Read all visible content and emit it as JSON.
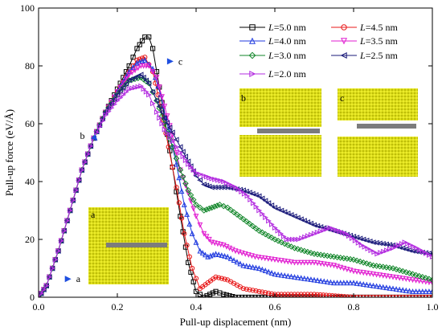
{
  "chart_data": {
    "type": "scatter",
    "xlabel": "Pull-up displacement (nm)",
    "ylabel": "Pull-up force (eV/Å)",
    "xlim": [
      0.0,
      1.0
    ],
    "ylim": [
      0,
      100
    ],
    "xticks": [
      "0.0",
      "0.2",
      "0.4",
      "0.6",
      "0.8",
      "1.0"
    ],
    "yticks": [
      "0",
      "20",
      "40",
      "60",
      "80",
      "100"
    ],
    "grid": false,
    "legend_position": "top-right",
    "series": [
      {
        "name": "=5.0 nm",
        "color": "#000000",
        "marker": "square",
        "points": [
          [
            0.0,
            0
          ],
          [
            0.02,
            4
          ],
          [
            0.05,
            16
          ],
          [
            0.08,
            30
          ],
          [
            0.11,
            44
          ],
          [
            0.14,
            55
          ],
          [
            0.17,
            64
          ],
          [
            0.2,
            72
          ],
          [
            0.23,
            80
          ],
          [
            0.25,
            86
          ],
          [
            0.27,
            90
          ],
          [
            0.28,
            90
          ],
          [
            0.29,
            86
          ],
          [
            0.3,
            78
          ],
          [
            0.32,
            62
          ],
          [
            0.34,
            45
          ],
          [
            0.36,
            28
          ],
          [
            0.38,
            12
          ],
          [
            0.4,
            2
          ],
          [
            0.42,
            0
          ],
          [
            0.45,
            2
          ],
          [
            0.47,
            1
          ],
          [
            0.5,
            0
          ],
          [
            0.6,
            0
          ],
          [
            0.7,
            0
          ],
          [
            0.8,
            0
          ],
          [
            0.9,
            0
          ],
          [
            1.0,
            0
          ]
        ]
      },
      {
        "name": "=4.5 nm",
        "color": "#e8191a",
        "marker": "circle",
        "points": [
          [
            0.0,
            0
          ],
          [
            0.02,
            4
          ],
          [
            0.05,
            16
          ],
          [
            0.08,
            30
          ],
          [
            0.11,
            44
          ],
          [
            0.14,
            55
          ],
          [
            0.17,
            64
          ],
          [
            0.2,
            71
          ],
          [
            0.23,
            78
          ],
          [
            0.25,
            82
          ],
          [
            0.27,
            83
          ],
          [
            0.29,
            78
          ],
          [
            0.31,
            66
          ],
          [
            0.33,
            52
          ],
          [
            0.35,
            38
          ],
          [
            0.37,
            22
          ],
          [
            0.39,
            10
          ],
          [
            0.41,
            3
          ],
          [
            0.43,
            5
          ],
          [
            0.45,
            7
          ],
          [
            0.48,
            6
          ],
          [
            0.52,
            3
          ],
          [
            0.56,
            2
          ],
          [
            0.6,
            1
          ],
          [
            0.7,
            1
          ],
          [
            0.8,
            0
          ],
          [
            0.9,
            0
          ],
          [
            1.0,
            0
          ]
        ]
      },
      {
        "name": "=4.0 nm",
        "color": "#1f3adf",
        "marker": "triangle-up",
        "points": [
          [
            0.0,
            0
          ],
          [
            0.02,
            4
          ],
          [
            0.05,
            16
          ],
          [
            0.08,
            30
          ],
          [
            0.11,
            44
          ],
          [
            0.14,
            55
          ],
          [
            0.17,
            64
          ],
          [
            0.2,
            71
          ],
          [
            0.23,
            78
          ],
          [
            0.25,
            81
          ],
          [
            0.27,
            82
          ],
          [
            0.29,
            79
          ],
          [
            0.31,
            70
          ],
          [
            0.33,
            58
          ],
          [
            0.35,
            46
          ],
          [
            0.37,
            32
          ],
          [
            0.39,
            22
          ],
          [
            0.41,
            16
          ],
          [
            0.43,
            14
          ],
          [
            0.45,
            15
          ],
          [
            0.48,
            14
          ],
          [
            0.52,
            11
          ],
          [
            0.56,
            10
          ],
          [
            0.6,
            8
          ],
          [
            0.65,
            7
          ],
          [
            0.7,
            6
          ],
          [
            0.75,
            5
          ],
          [
            0.8,
            5
          ],
          [
            0.85,
            4
          ],
          [
            0.9,
            3
          ],
          [
            0.95,
            2
          ],
          [
            1.0,
            2
          ]
        ]
      },
      {
        "name": "=3.5 nm",
        "color": "#e01bd0",
        "marker": "triangle-down",
        "points": [
          [
            0.0,
            0
          ],
          [
            0.02,
            4
          ],
          [
            0.05,
            16
          ],
          [
            0.08,
            30
          ],
          [
            0.11,
            44
          ],
          [
            0.14,
            55
          ],
          [
            0.17,
            64
          ],
          [
            0.2,
            71
          ],
          [
            0.23,
            77
          ],
          [
            0.26,
            80
          ],
          [
            0.28,
            80
          ],
          [
            0.3,
            76
          ],
          [
            0.32,
            66
          ],
          [
            0.34,
            56
          ],
          [
            0.36,
            44
          ],
          [
            0.38,
            36
          ],
          [
            0.4,
            28
          ],
          [
            0.42,
            22
          ],
          [
            0.44,
            19
          ],
          [
            0.47,
            18
          ],
          [
            0.5,
            16
          ],
          [
            0.55,
            14
          ],
          [
            0.6,
            13
          ],
          [
            0.65,
            12
          ],
          [
            0.7,
            12
          ],
          [
            0.75,
            11
          ],
          [
            0.8,
            9
          ],
          [
            0.85,
            8
          ],
          [
            0.9,
            7
          ],
          [
            0.95,
            6
          ],
          [
            1.0,
            5
          ]
        ]
      },
      {
        "name": "=3.0 nm",
        "color": "#12862a",
        "marker": "diamond",
        "points": [
          [
            0.0,
            0
          ],
          [
            0.02,
            4
          ],
          [
            0.05,
            16
          ],
          [
            0.08,
            30
          ],
          [
            0.11,
            44
          ],
          [
            0.14,
            55
          ],
          [
            0.17,
            64
          ],
          [
            0.2,
            70
          ],
          [
            0.23,
            75
          ],
          [
            0.26,
            76
          ],
          [
            0.28,
            74
          ],
          [
            0.3,
            68
          ],
          [
            0.32,
            60
          ],
          [
            0.34,
            52
          ],
          [
            0.36,
            44
          ],
          [
            0.38,
            37
          ],
          [
            0.4,
            32
          ],
          [
            0.42,
            30
          ],
          [
            0.44,
            31
          ],
          [
            0.46,
            32
          ],
          [
            0.48,
            31
          ],
          [
            0.52,
            27
          ],
          [
            0.56,
            23
          ],
          [
            0.6,
            20
          ],
          [
            0.65,
            17
          ],
          [
            0.7,
            15
          ],
          [
            0.75,
            14
          ],
          [
            0.8,
            13
          ],
          [
            0.85,
            11
          ],
          [
            0.9,
            10
          ],
          [
            0.95,
            8
          ],
          [
            1.0,
            6
          ]
        ]
      },
      {
        "name": "=2.5 nm",
        "color": "#1a1a7a",
        "marker": "triangle-left",
        "points": [
          [
            0.0,
            0
          ],
          [
            0.02,
            4
          ],
          [
            0.05,
            16
          ],
          [
            0.08,
            30
          ],
          [
            0.11,
            44
          ],
          [
            0.14,
            55
          ],
          [
            0.17,
            64
          ],
          [
            0.2,
            70
          ],
          [
            0.23,
            75
          ],
          [
            0.26,
            77
          ],
          [
            0.28,
            74
          ],
          [
            0.3,
            68
          ],
          [
            0.32,
            62
          ],
          [
            0.34,
            57
          ],
          [
            0.36,
            52
          ],
          [
            0.38,
            47
          ],
          [
            0.4,
            42
          ],
          [
            0.42,
            39
          ],
          [
            0.44,
            38
          ],
          [
            0.48,
            38
          ],
          [
            0.52,
            37
          ],
          [
            0.56,
            35
          ],
          [
            0.6,
            31
          ],
          [
            0.65,
            28
          ],
          [
            0.7,
            25
          ],
          [
            0.75,
            23
          ],
          [
            0.8,
            21
          ],
          [
            0.85,
            19
          ],
          [
            0.9,
            18
          ],
          [
            0.95,
            16
          ],
          [
            1.0,
            15
          ]
        ]
      },
      {
        "name": "=2.0 nm",
        "color": "#b32de0",
        "marker": "triangle-right",
        "points": [
          [
            0.0,
            0
          ],
          [
            0.02,
            4
          ],
          [
            0.05,
            16
          ],
          [
            0.08,
            30
          ],
          [
            0.11,
            44
          ],
          [
            0.14,
            55
          ],
          [
            0.17,
            63
          ],
          [
            0.2,
            68
          ],
          [
            0.23,
            72
          ],
          [
            0.26,
            73
          ],
          [
            0.28,
            70
          ],
          [
            0.3,
            64
          ],
          [
            0.32,
            58
          ],
          [
            0.34,
            54
          ],
          [
            0.36,
            50
          ],
          [
            0.38,
            46
          ],
          [
            0.4,
            43
          ],
          [
            0.42,
            42
          ],
          [
            0.44,
            41
          ],
          [
            0.47,
            40
          ],
          [
            0.5,
            38
          ],
          [
            0.53,
            35
          ],
          [
            0.56,
            30
          ],
          [
            0.6,
            24
          ],
          [
            0.63,
            20
          ],
          [
            0.66,
            20
          ],
          [
            0.7,
            22
          ],
          [
            0.74,
            24
          ],
          [
            0.78,
            22
          ],
          [
            0.82,
            18
          ],
          [
            0.86,
            15
          ],
          [
            0.9,
            17
          ],
          [
            0.93,
            19
          ],
          [
            0.96,
            17
          ],
          [
            1.0,
            14
          ]
        ]
      }
    ],
    "annotations": [
      {
        "label": "a",
        "x": 0.03,
        "y": 3
      },
      {
        "label": "b",
        "x": 0.15,
        "y": 58
      },
      {
        "label": "c",
        "x": 0.31,
        "y": 81
      }
    ]
  },
  "legend": {
    "prefix": "L"
  },
  "insets": [
    {
      "label": "a",
      "state": "intact"
    },
    {
      "label": "b",
      "state": "crack"
    },
    {
      "label": "c",
      "state": "separated"
    }
  ]
}
